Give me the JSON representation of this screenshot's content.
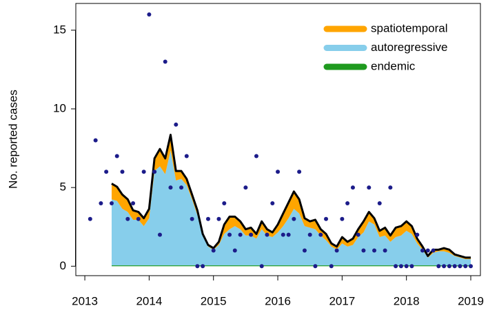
{
  "chart_data": {
    "type": "stacked-area",
    "y_label": "No. reported cases",
    "x": [
      2013.083,
      2013.167,
      2013.25,
      2013.333,
      2013.417,
      2013.5,
      2013.583,
      2013.667,
      2013.75,
      2013.833,
      2013.917,
      2014.0,
      2014.083,
      2014.167,
      2014.25,
      2014.333,
      2014.417,
      2014.5,
      2014.583,
      2014.667,
      2014.75,
      2014.833,
      2014.917,
      2015.0,
      2015.083,
      2015.167,
      2015.25,
      2015.333,
      2015.417,
      2015.5,
      2015.583,
      2015.667,
      2015.75,
      2015.833,
      2015.917,
      2016.0,
      2016.083,
      2016.167,
      2016.25,
      2016.333,
      2016.417,
      2016.5,
      2016.583,
      2016.667,
      2016.75,
      2016.833,
      2016.917,
      2017.0,
      2017.083,
      2017.167,
      2017.25,
      2017.333,
      2017.417,
      2017.5,
      2017.583,
      2017.667,
      2017.75,
      2017.833,
      2017.917,
      2018.0,
      2018.083,
      2018.167,
      2018.25,
      2018.333,
      2018.417,
      2018.5,
      2018.583,
      2018.667,
      2018.75,
      2018.833,
      2018.917,
      2019.0
    ],
    "series": [
      {
        "name": "spatiotemporal",
        "color": "#ffa500",
        "values": [
          null,
          null,
          null,
          null,
          1.0,
          0.9,
          0.9,
          0.8,
          0.6,
          0.5,
          0.5,
          0.6,
          0.8,
          1.1,
          1.0,
          1.0,
          0.6,
          0.5,
          0.4,
          0.3,
          0.3,
          0.1,
          0.1,
          0.1,
          0.2,
          0.6,
          0.8,
          0.6,
          0.5,
          0.4,
          0.5,
          0.3,
          0.5,
          0.4,
          0.3,
          0.5,
          0.8,
          1.0,
          1.1,
          0.9,
          0.5,
          0.4,
          0.6,
          0.4,
          0.4,
          0.2,
          0.2,
          0.4,
          0.3,
          0.4,
          0.5,
          0.7,
          0.6,
          0.4,
          0.4,
          0.5,
          0.4,
          0.6,
          0.6,
          0.6,
          0.5,
          0.3,
          0.2,
          0.1,
          0.2,
          0.1,
          0.2,
          0.2,
          0.1,
          0.1,
          0.1,
          0.1
        ]
      },
      {
        "name": "autoregressive",
        "color": "#87ceeb",
        "values": [
          null,
          null,
          null,
          null,
          4.2,
          4.1,
          3.6,
          3.4,
          2.9,
          2.9,
          2.5,
          3.0,
          6.0,
          6.3,
          5.8,
          7.3,
          5.4,
          5.5,
          5.1,
          4.2,
          3.2,
          1.9,
          1.2,
          1.0,
          1.3,
          2.0,
          2.3,
          2.5,
          2.3,
          1.9,
          1.9,
          1.7,
          2.3,
          1.9,
          1.8,
          2.1,
          2.5,
          3.0,
          3.6,
          3.3,
          2.5,
          2.4,
          2.3,
          1.9,
          1.6,
          1.2,
          1.0,
          1.4,
          1.2,
          1.3,
          1.8,
          2.1,
          2.8,
          2.6,
          1.8,
          1.9,
          1.5,
          1.8,
          1.9,
          2.2,
          2.0,
          1.4,
          1.0,
          0.5,
          0.8,
          0.9,
          0.9,
          0.8,
          0.6,
          0.5,
          0.4,
          0.4
        ]
      },
      {
        "name": "endemic",
        "color": "#1f9a1f",
        "values": [
          null,
          null,
          null,
          null,
          0.05,
          0.05,
          0.05,
          0.05,
          0.05,
          0.05,
          0.05,
          0.05,
          0.05,
          0.05,
          0.05,
          0.05,
          0.05,
          0.05,
          0.05,
          0.05,
          0.05,
          0.05,
          0.05,
          0.05,
          0.05,
          0.05,
          0.05,
          0.05,
          0.05,
          0.05,
          0.05,
          0.05,
          0.05,
          0.05,
          0.05,
          0.05,
          0.05,
          0.05,
          0.05,
          0.05,
          0.05,
          0.05,
          0.05,
          0.05,
          0.05,
          0.05,
          0.05,
          0.05,
          0.05,
          0.05,
          0.05,
          0.05,
          0.05,
          0.05,
          0.05,
          0.05,
          0.05,
          0.05,
          0.05,
          0.05,
          0.05,
          0.05,
          0.05,
          0.05,
          0.05,
          0.05,
          0.05,
          0.05,
          0.05,
          0.05,
          0.05,
          0.05
        ]
      }
    ],
    "total_line_color": "#000000",
    "observed": {
      "color": "#1c1c8a",
      "values": [
        3,
        8,
        4,
        6,
        4,
        7,
        6,
        3,
        4,
        3,
        6,
        16,
        6,
        2,
        13,
        5,
        9,
        5,
        7,
        3,
        0,
        0,
        3,
        1,
        3,
        4,
        2,
        1,
        2,
        5,
        2,
        7,
        0,
        2,
        4,
        6,
        2,
        2,
        3,
        6,
        1,
        2,
        0,
        2,
        3,
        0,
        1,
        3,
        4,
        5,
        2,
        1,
        5,
        1,
        4,
        1,
        5,
        0,
        0,
        0,
        0,
        2,
        1,
        1,
        1,
        0,
        0,
        0,
        0,
        0,
        0,
        0
      ]
    },
    "xlim": [
      2012.86,
      2019.15
    ],
    "xticks": [
      2013,
      2014,
      2015,
      2016,
      2017,
      2018,
      2019
    ],
    "ylim": [
      -0.6,
      16.7
    ],
    "yticks": [
      0,
      5,
      10,
      15
    ],
    "legend": "top-right"
  }
}
